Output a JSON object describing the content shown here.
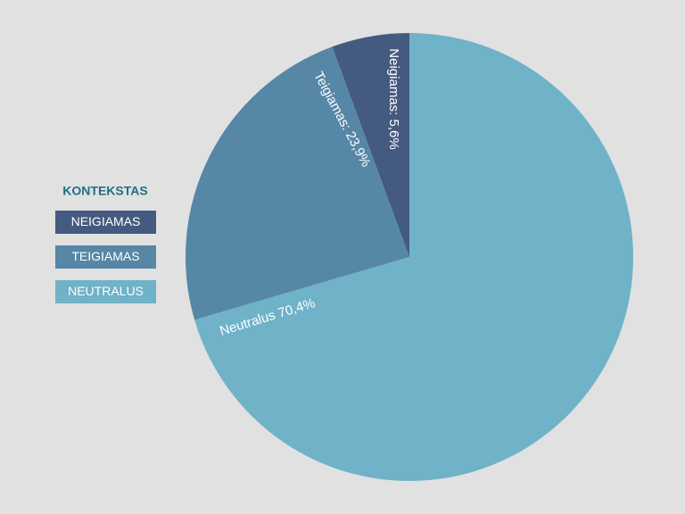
{
  "chart_data": {
    "type": "pie",
    "legend_title": "KONTEKSTAS",
    "categories": [
      "NEIGIAMAS",
      "TEIGIAMAS",
      "NEUTRALUS"
    ],
    "values": [
      5.6,
      23.9,
      70.4
    ],
    "value_labels": [
      "Neigiamas: 5,6%",
      "Teigiamas: 23,9%",
      "Neutralus 70,4%"
    ],
    "colors": [
      "#455a80",
      "#5687a6",
      "#70b2c8"
    ],
    "legend": "left"
  }
}
